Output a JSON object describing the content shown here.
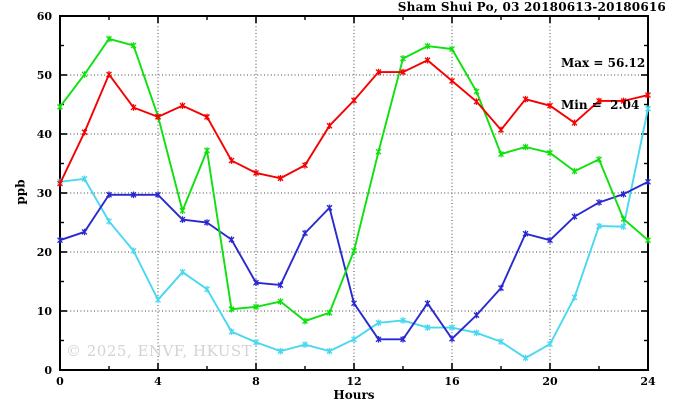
{
  "title": "Sham Shui Po, 03 20180613-20180616",
  "annotation": {
    "max_line": "Max = 56.12",
    "min_line": "Min =  2.04"
  },
  "watermark": "© 2025, ENVF, HKUST",
  "axes": {
    "x_label": "Hours",
    "y_label": "ppb"
  },
  "colors": {
    "red": "#f50000",
    "green": "#0de00d",
    "blue": "#2929cf",
    "cyan": "#48d8ef",
    "frame": "#000000",
    "grid": "#444444",
    "watermark": "#d3d3d3"
  },
  "chart_data": {
    "type": "line",
    "title": "Sham Shui Po, 03 20180613-20180616",
    "xlabel": "Hours",
    "ylabel": "ppb",
    "xlim": [
      0,
      24
    ],
    "ylim": [
      0,
      60
    ],
    "x_major_ticks": [
      0,
      4,
      8,
      12,
      16,
      20,
      24
    ],
    "x_minor_tick_step": 2,
    "y_major_ticks": [
      0,
      10,
      20,
      30,
      40,
      50,
      60
    ],
    "y_minor_tick_step": 5,
    "grid": {
      "x_at": [
        4,
        8,
        12,
        16,
        20
      ],
      "y_at": [
        10,
        20,
        30,
        40,
        50
      ],
      "style": "dotted"
    },
    "legend_position": "none",
    "marker": "star",
    "stats": {
      "max": 56.12,
      "min": 2.04
    },
    "x": [
      0,
      1,
      2,
      3,
      4,
      5,
      6,
      7,
      8,
      9,
      10,
      11,
      12,
      13,
      14,
      15,
      16,
      17,
      18,
      19,
      20,
      21,
      22,
      23,
      24
    ],
    "series": [
      {
        "name": "cyan",
        "color": "#48d8ef",
        "values": [
          31.9,
          32.4,
          25.2,
          20.2,
          11.9,
          16.6,
          13.7,
          6.5,
          4.7,
          3.2,
          4.3,
          3.2,
          5.2,
          8.0,
          8.4,
          7.2,
          7.2,
          6.3,
          4.8,
          2.04,
          4.4,
          12.3,
          24.4,
          24.3,
          44.3
        ]
      },
      {
        "name": "blue",
        "color": "#2929cf",
        "values": [
          22.0,
          23.4,
          29.7,
          29.7,
          29.7,
          25.5,
          25.0,
          22.1,
          14.8,
          14.4,
          23.2,
          27.5,
          11.3,
          5.2,
          5.2,
          11.3,
          5.3,
          9.3,
          13.9,
          23.1,
          22.0,
          26.0,
          28.4,
          29.8,
          31.9
        ]
      },
      {
        "name": "green",
        "color": "#0de00d",
        "values": [
          44.6,
          50.1,
          56.12,
          55.0,
          43.0,
          27.0,
          37.2,
          10.3,
          10.7,
          11.6,
          8.3,
          9.7,
          20.2,
          37.0,
          52.8,
          54.9,
          54.4,
          47.2,
          36.6,
          37.8,
          36.8,
          33.7,
          35.7,
          25.6,
          22.0
        ]
      },
      {
        "name": "red",
        "color": "#f50000",
        "values": [
          31.6,
          40.3,
          50.1,
          44.5,
          42.9,
          44.8,
          42.9,
          35.5,
          33.4,
          32.5,
          34.7,
          41.4,
          45.7,
          50.5,
          50.5,
          52.5,
          49.0,
          45.5,
          40.7,
          45.9,
          44.8,
          41.9,
          45.6,
          45.6,
          46.6
        ]
      }
    ]
  }
}
